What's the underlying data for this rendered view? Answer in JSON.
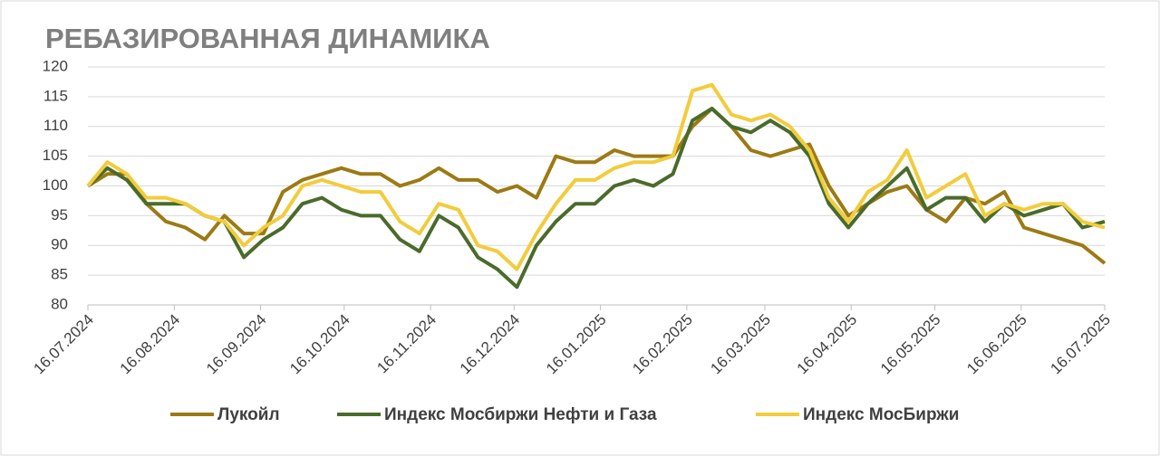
{
  "chart_data": {
    "type": "line",
    "title": "РЕБАЗИРОВАННАЯ ДИНАМИКА",
    "x": [
      "16.07.2024",
      "23.07.2024",
      "30.07.2024",
      "06.08.2024",
      "13.08.2024",
      "20.08.2024",
      "27.08.2024",
      "03.09.2024",
      "10.09.2024",
      "17.09.2024",
      "24.09.2024",
      "01.10.2024",
      "08.10.2024",
      "15.10.2024",
      "22.10.2024",
      "29.10.2024",
      "05.11.2024",
      "12.11.2024",
      "19.11.2024",
      "26.11.2024",
      "03.12.2024",
      "10.12.2024",
      "17.12.2024",
      "24.12.2024",
      "31.12.2024",
      "07.01.2025",
      "14.01.2025",
      "21.01.2025",
      "28.01.2025",
      "04.02.2025",
      "11.02.2025",
      "18.02.2025",
      "25.02.2025",
      "04.03.2025",
      "11.03.2025",
      "18.03.2025",
      "25.03.2025",
      "01.04.2025",
      "08.04.2025",
      "15.04.2025",
      "22.04.2025",
      "29.04.2025",
      "06.05.2025",
      "13.05.2025",
      "20.05.2025",
      "27.05.2025",
      "03.06.2025",
      "10.06.2025",
      "17.06.2025",
      "24.06.2025",
      "01.07.2025",
      "08.07.2025",
      "16.07.2025"
    ],
    "series": [
      {
        "name": "Лукойл",
        "color": "#9c7a14",
        "values": [
          100,
          102,
          102,
          97,
          94,
          93,
          91,
          95,
          92,
          92,
          99,
          101,
          102,
          103,
          102,
          102,
          100,
          101,
          103,
          101,
          101,
          99,
          100,
          98,
          105,
          104,
          104,
          106,
          105,
          105,
          105,
          110,
          113,
          110,
          106,
          105,
          106,
          107,
          100,
          95,
          97,
          99,
          100,
          96,
          94,
          98,
          97,
          99,
          93,
          92,
          91,
          90,
          87
        ]
      },
      {
        "name": "Индекс Мосбиржи Нефти и Газа",
        "color": "#4a6b2a",
        "values": [
          100,
          103,
          101,
          97,
          97,
          97,
          95,
          94,
          88,
          91,
          93,
          97,
          98,
          96,
          95,
          95,
          91,
          89,
          95,
          93,
          88,
          86,
          83,
          90,
          94,
          97,
          97,
          100,
          101,
          100,
          102,
          111,
          113,
          110,
          109,
          111,
          109,
          105,
          97,
          93,
          97,
          100,
          103,
          96,
          98,
          98,
          94,
          97,
          95,
          96,
          97,
          93,
          94
        ]
      },
      {
        "name": "Индекс МосБиржи",
        "color": "#f2cc3c",
        "values": [
          100,
          104,
          102,
          98,
          98,
          97,
          95,
          94,
          90,
          93,
          95,
          100,
          101,
          100,
          99,
          99,
          94,
          92,
          97,
          96,
          90,
          89,
          86,
          92,
          97,
          101,
          101,
          103,
          104,
          104,
          105,
          116,
          117,
          112,
          111,
          112,
          110,
          106,
          98,
          94,
          99,
          101,
          106,
          98,
          100,
          102,
          95,
          97,
          96,
          97,
          97,
          94,
          93
        ]
      }
    ],
    "xlim": [
      "16.07.2024",
      "16.07.2025"
    ],
    "xticks": [
      "16.07.2024",
      "16.08.2024",
      "16.09.2024",
      "16.10.2024",
      "16.11.2024",
      "16.12.2024",
      "16.01.2025",
      "16.02.2025",
      "16.03.2025",
      "16.04.2025",
      "16.05.2025",
      "16.06.2025",
      "16.07.2025"
    ],
    "ylim": [
      80,
      120
    ],
    "yticks": [
      80,
      85,
      90,
      95,
      100,
      105,
      110,
      115,
      120
    ],
    "grid": true
  }
}
